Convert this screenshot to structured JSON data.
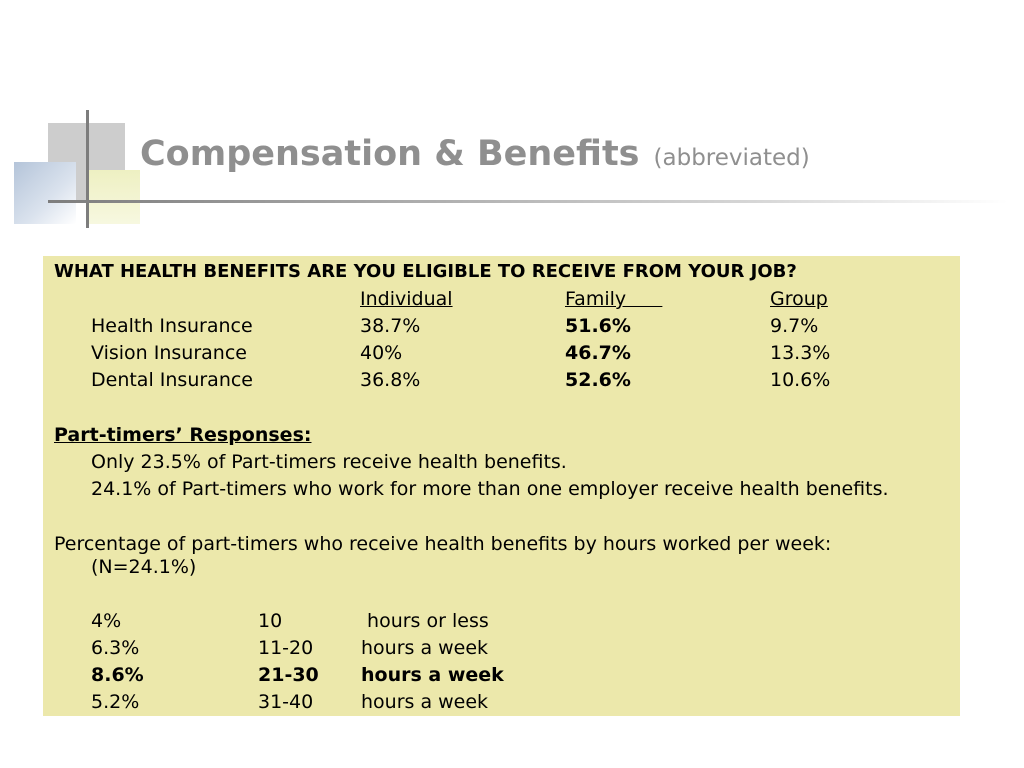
{
  "title": {
    "main": "Compensation & Benefits",
    "sub": "(abbreviated)"
  },
  "question": "WHAT HEALTH BENEFITS ARE YOU ELIGIBLE TO RECEIVE FROM YOUR JOB?",
  "benefits_table": {
    "headers": [
      "Individual",
      "Family      ",
      "Group"
    ],
    "rows": [
      {
        "label": "Health Insurance",
        "individual": "38.7%",
        "family": "51.6%",
        "group": "9.7%"
      },
      {
        "label": "Vision Insurance",
        "individual": "40%",
        "family": "46.7%",
        "group": "13.3%"
      },
      {
        "label": "Dental Insurance",
        "individual": "36.8%",
        "family": "52.6%",
        "group": "10.6%"
      }
    ]
  },
  "part_timers": {
    "heading": "Part-timers’ Responses:",
    "items": [
      "Only 23.5% of Part-timers receive health benefits.",
      "24.1% of Part-timers who work for more than one employer receive health benefits."
    ]
  },
  "hours": {
    "intro_line1": "Percentage of part-timers who receive health benefits by hours worked per week:",
    "intro_line2": "(N=24.1%)",
    "rows": [
      {
        "pct": "4%",
        "range": "10",
        "desc": " hours or less"
      },
      {
        "pct": "6.3%",
        "range": "11-20",
        "desc": "hours a week"
      },
      {
        "pct": "8.6%",
        "range": "21-30",
        "desc": "hours a week"
      },
      {
        "pct": "5.2%",
        "range": "31-40",
        "desc": "hours a week"
      }
    ]
  }
}
